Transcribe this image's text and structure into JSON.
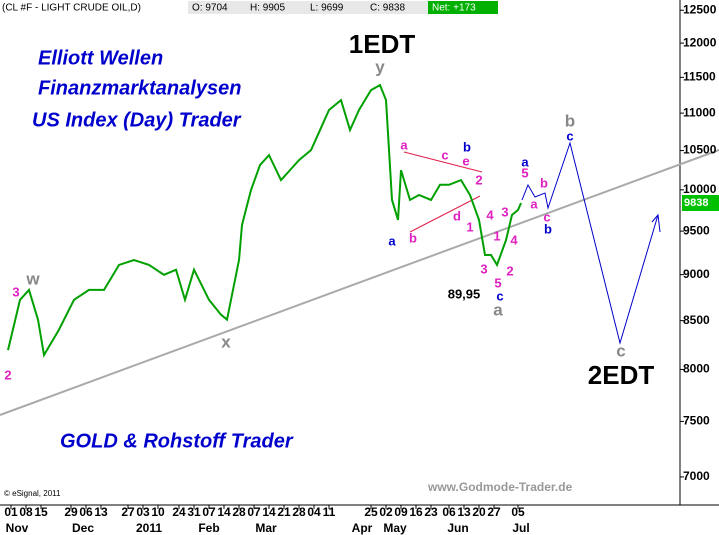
{
  "chart_data": {
    "type": "line",
    "header": {
      "symbol": "(CL #F - LIGHT CRUDE OIL,D)",
      "open": "O: 9704",
      "high": "H: 9905",
      "low": "L: 9699",
      "close": "C: 9838",
      "net": "Net: +173"
    },
    "titles": [
      "Elliott Wellen",
      "Finanzmarktanalysen",
      "US Index (Day) Trader",
      "GOLD & Rohstoff Trader"
    ],
    "copyright": "© eSignal, 2011",
    "website": "www.Godmode-Trader.de",
    "last_price": "9838",
    "annotations": [
      "w",
      "3",
      "2",
      "x",
      "y",
      "1EDT",
      "a",
      "c",
      "e",
      "b",
      "2",
      "d",
      "b",
      "a",
      "1",
      "4",
      "3",
      "1",
      "3",
      "2",
      "4",
      "5",
      "c",
      "a",
      "89,95",
      "a",
      "5",
      "b",
      "a",
      "c",
      "b",
      "b",
      "c",
      "c",
      "2EDT"
    ],
    "x": [
      0,
      4,
      7,
      10,
      12,
      17,
      22,
      27,
      32,
      37,
      42,
      47,
      52,
      56,
      59,
      62,
      67,
      71,
      73,
      77,
      78,
      81,
      84,
      87,
      91,
      94,
      97,
      101,
      104,
      107,
      111,
      114,
      117,
      121,
      124,
      126,
      128,
      130,
      131,
      134,
      137,
      141,
      144,
      147,
      151,
      154,
      157,
      159,
      161,
      163,
      166,
      168,
      170,
      171
    ],
    "series": [
      {
        "color": "#00a000",
        "values": [
          8194,
          8723,
          8831,
          8510,
          8145,
          8406,
          8723,
          8831,
          8831,
          9109,
          9165,
          9109,
          8998,
          9055,
          8723,
          9055,
          8723,
          8563,
          8510,
          9165,
          9573,
          9998,
          10313,
          10441,
          10122,
          10248,
          10376,
          10506,
          10771,
          11043,
          11180,
          10771,
          11043,
          11319,
          11390,
          11180,
          9875,
          9633,
          10248,
          9875,
          9936,
          9875,
          10063,
          10063,
          10122,
          9936,
          9633,
          9222,
          9222,
          9109,
          9395,
          9693,
          9753,
          9838
        ]
      }
    ],
    "xlim": [
      -2.67,
      224
    ],
    "xticks": [
      {
        "value": 1,
        "label": "01"
      },
      {
        "value": 6,
        "label": "08"
      },
      {
        "value": 11,
        "label": "15"
      },
      {
        "value": 21,
        "label": "29"
      },
      {
        "value": 26,
        "label": "06"
      },
      {
        "value": 31,
        "label": "13"
      },
      {
        "value": 40,
        "label": "27"
      },
      {
        "value": 45,
        "label": "03"
      },
      {
        "value": 50,
        "label": "10"
      },
      {
        "value": 57,
        "label": "24"
      },
      {
        "value": 62,
        "label": "31"
      },
      {
        "value": 67,
        "label": "07"
      },
      {
        "value": 72,
        "label": "14"
      },
      {
        "value": 77,
        "label": "28"
      },
      {
        "value": 82,
        "label": "07"
      },
      {
        "value": 87,
        "label": "14"
      },
      {
        "value": 92,
        "label": "21"
      },
      {
        "value": 97,
        "label": "28"
      },
      {
        "value": 102,
        "label": "04"
      },
      {
        "value": 107,
        "label": "11"
      },
      {
        "value": 121,
        "label": "25"
      },
      {
        "value": 126,
        "label": "02"
      },
      {
        "value": 131,
        "label": "09"
      },
      {
        "value": 136,
        "label": "16"
      },
      {
        "value": 141,
        "label": "23"
      },
      {
        "value": 147,
        "label": "06"
      },
      {
        "value": 152,
        "label": "13"
      },
      {
        "value": 157,
        "label": "20"
      },
      {
        "value": 162,
        "label": "27"
      },
      {
        "value": 170,
        "label": "05"
      }
    ],
    "month_ticks": [
      {
        "value": 3,
        "label": "Nov"
      },
      {
        "value": 25,
        "label": "Dec"
      },
      {
        "value": 47,
        "label": "2011"
      },
      {
        "value": 67,
        "label": "Feb"
      },
      {
        "value": 86,
        "label": "Mar"
      },
      {
        "value": 118,
        "label": "Apr"
      },
      {
        "value": 129,
        "label": "May"
      },
      {
        "value": 150,
        "label": "Jun"
      },
      {
        "value": 171,
        "label": "Jul"
      }
    ],
    "ylim": [
      6760,
      12660
    ],
    "yticks": [
      12500,
      12000,
      11500,
      11000,
      10500,
      10000,
      9500,
      9000,
      8500,
      8000,
      7500,
      7000
    ],
    "log_scale": true,
    "grid": false
  }
}
